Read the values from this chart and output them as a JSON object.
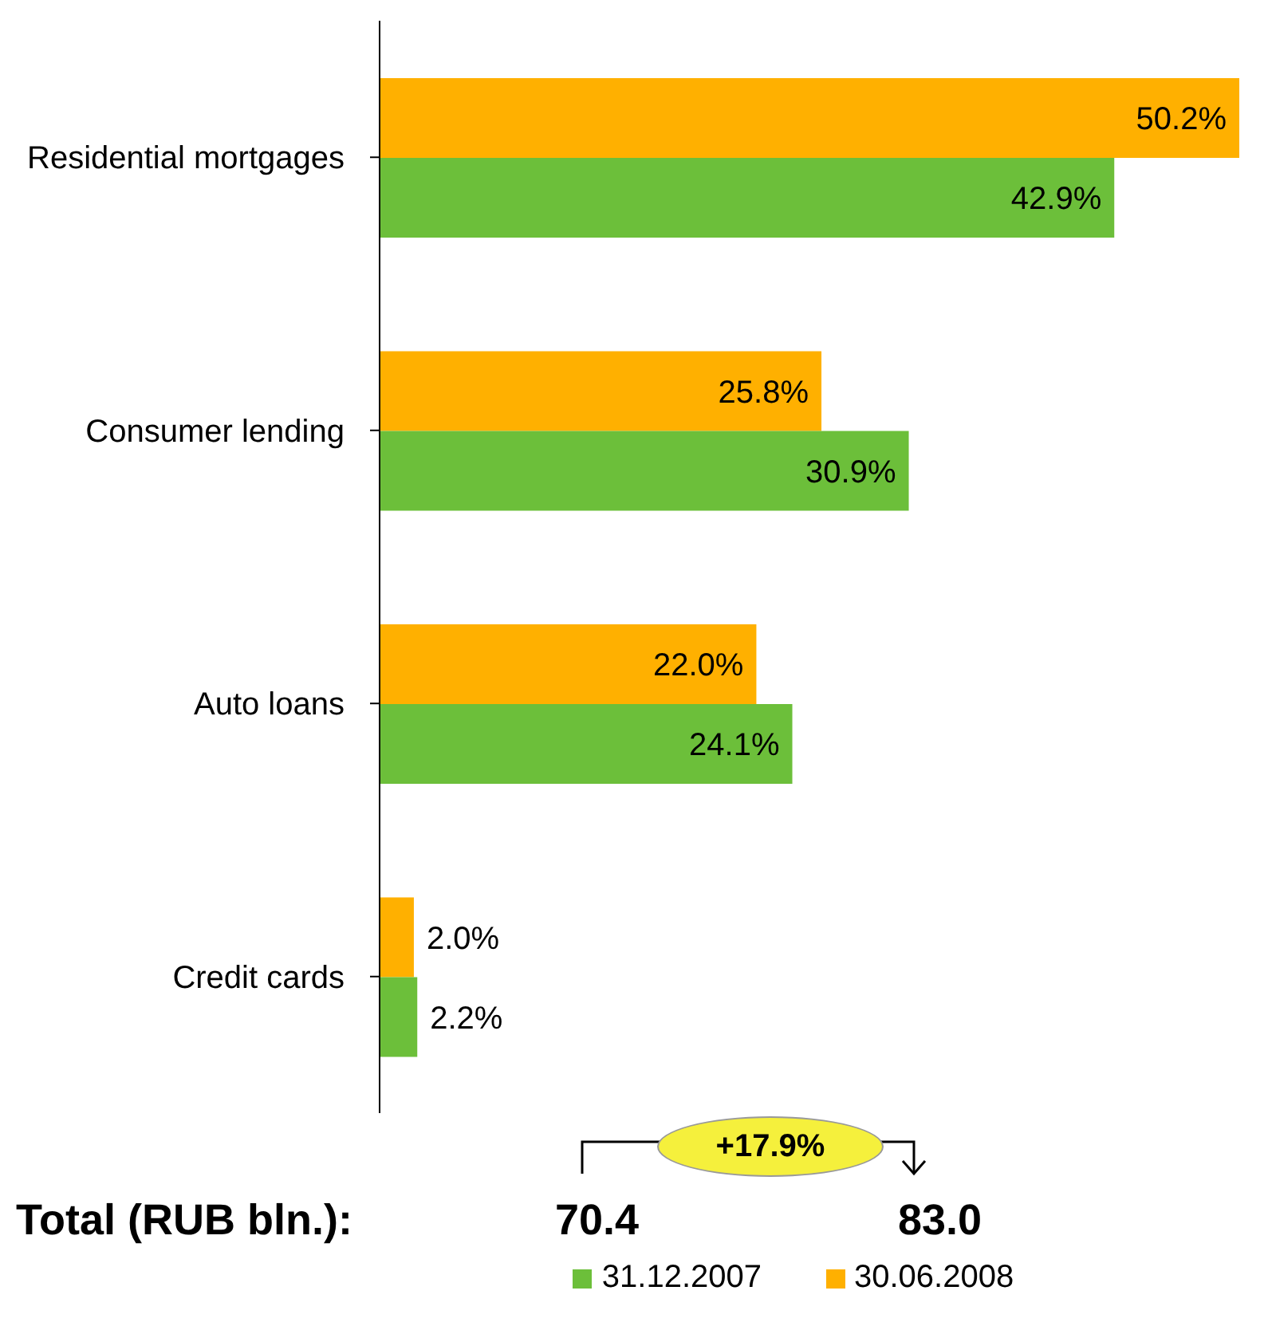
{
  "chart_data": {
    "type": "bar",
    "orientation": "horizontal",
    "categories": [
      "Residential mortgages",
      "Consumer lending",
      "Auto loans",
      "Credit cards"
    ],
    "series": [
      {
        "name": "31.12.2007",
        "color": "#6cbf3a",
        "values": [
          42.9,
          30.9,
          24.1,
          2.2
        ],
        "value_labels": [
          "42.9%",
          "30.9%",
          "24.1%",
          "2.2%"
        ]
      },
      {
        "name": "30.06.2008",
        "color": "#ffb000",
        "values": [
          50.2,
          25.8,
          22.0,
          2.0
        ],
        "value_labels": [
          "50.2%",
          "25.8%",
          "22.0%",
          "2.0%"
        ]
      }
    ],
    "annotations": [
      "Total (RUB bln.):",
      "70.4",
      "83.0",
      "+17.9%"
    ],
    "legend": "bottom"
  }
}
